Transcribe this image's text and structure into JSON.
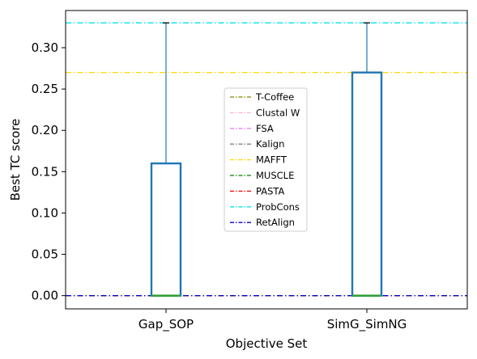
{
  "chart_data": {
    "type": "box",
    "xlabel": "Objective Set",
    "ylabel": "Best TC score",
    "ylim": [
      -0.016,
      0.345
    ],
    "yticks": [
      "0.00",
      "0.05",
      "0.10",
      "0.15",
      "0.20",
      "0.25",
      "0.30"
    ],
    "categories": [
      "Gap_SOP",
      "SimG_SimNG"
    ],
    "boxes": [
      {
        "category": "Gap_SOP",
        "min": 0.0,
        "q1": 0.0,
        "median": 0.0,
        "q3": 0.16,
        "max": 0.33
      },
      {
        "category": "SimG_SimNG",
        "min": 0.0,
        "q1": 0.0,
        "median": 0.0,
        "q3": 0.27,
        "max": 0.33
      }
    ],
    "box_color": "#1f77b4",
    "median_color": "#2ca02c",
    "reference_lines": [
      {
        "name": "T-Coffee",
        "value": 0.0,
        "color": "#808000"
      },
      {
        "name": "Clustal W",
        "value": 0.0,
        "color": "#ffb6c1"
      },
      {
        "name": "FSA",
        "value": 0.0,
        "color": "#ee82ee"
      },
      {
        "name": "Kalign",
        "value": 0.0,
        "color": "#808080"
      },
      {
        "name": "MAFFT",
        "value": 0.27,
        "color": "#ffd700"
      },
      {
        "name": "MUSCLE",
        "value": 0.0,
        "color": "#008000"
      },
      {
        "name": "PASTA",
        "value": 0.0,
        "color": "#ff0000"
      },
      {
        "name": "ProbCons",
        "value": 0.33,
        "color": "#00e5ee"
      },
      {
        "name": "RetAlign",
        "value": 0.0,
        "color": "#0000cd"
      }
    ],
    "legend_position": "center"
  }
}
